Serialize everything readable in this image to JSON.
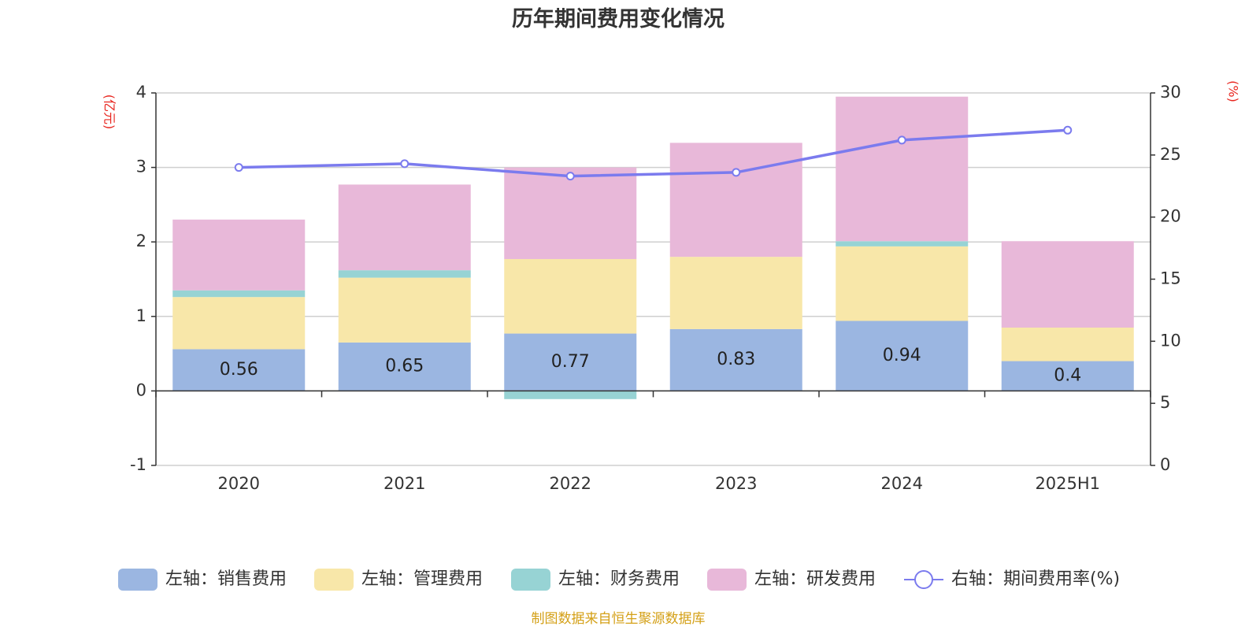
{
  "chart_data": {
    "type": "bar",
    "title": "历年期间费用变化情况",
    "categories": [
      "2020",
      "2021",
      "2022",
      "2023",
      "2024",
      "2025H1"
    ],
    "left_axis": {
      "unit": "(亿元)",
      "ylim": [
        -1,
        4
      ],
      "ticks": [
        "4",
        "3",
        "2",
        "1",
        "0",
        "-1"
      ]
    },
    "right_axis": {
      "unit": "(%)",
      "ylim": [
        0,
        30
      ],
      "ticks": [
        "30",
        "25",
        "20",
        "15",
        "10",
        "5",
        "0"
      ]
    },
    "series": [
      {
        "name": "左轴：销售费用",
        "stack": "cost",
        "axis": "left",
        "color": "#9bb6e1",
        "values": [
          0.56,
          0.65,
          0.77,
          0.83,
          0.94,
          0.4
        ],
        "labels": [
          "0.56",
          "0.65",
          "0.77",
          "0.83",
          "0.94",
          "0.4"
        ]
      },
      {
        "name": "左轴：管理费用",
        "stack": "cost",
        "axis": "left",
        "color": "#f8e7a9",
        "values": [
          0.7,
          0.87,
          1.0,
          0.97,
          1.0,
          0.45
        ]
      },
      {
        "name": "左轴：财务费用",
        "stack": "cost",
        "axis": "left",
        "color": "#97d3d4",
        "values": [
          0.09,
          0.1,
          -0.11,
          0.0,
          0.07,
          0.0
        ]
      },
      {
        "name": "左轴：研发费用",
        "stack": "cost",
        "axis": "left",
        "color": "#e8b8d9",
        "values": [
          0.95,
          1.15,
          1.23,
          1.53,
          1.94,
          1.16
        ]
      },
      {
        "name": "右轴：期间费用率(%)",
        "type": "line",
        "axis": "right",
        "color": "#7b7bee",
        "values": [
          24.0,
          24.3,
          23.3,
          23.6,
          26.2,
          27.0
        ]
      }
    ],
    "grid": true,
    "legend_position": "bottom"
  },
  "source_note": "制图数据来自恒生聚源数据库"
}
